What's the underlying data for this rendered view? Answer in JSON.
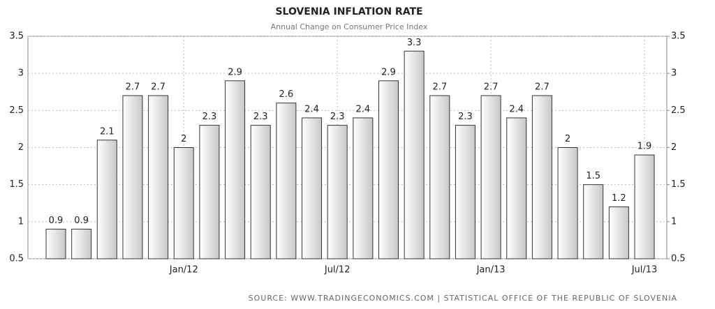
{
  "chart_data": {
    "type": "bar",
    "title": "SLOVENIA INFLATION RATE",
    "subtitle": "Annual Change on Consumer Price Index",
    "categories": [
      null,
      null,
      null,
      null,
      null,
      "Jan/12",
      null,
      null,
      null,
      null,
      null,
      "Jul/12",
      null,
      null,
      null,
      null,
      null,
      "Jan/13",
      null,
      null,
      null,
      null,
      null,
      "Jul/13"
    ],
    "values": [
      0.9,
      0.9,
      2.1,
      2.7,
      2.7,
      2,
      2.3,
      2.9,
      2.3,
      2.6,
      2.4,
      2.3,
      2.4,
      2.9,
      3.3,
      2.7,
      2.3,
      2.7,
      2.4,
      2.7,
      2,
      1.5,
      1.2,
      1.9
    ],
    "color": "#d8d8d8",
    "ylim": [
      0.5,
      3.5
    ],
    "yticks": [
      0.5,
      1,
      1.5,
      2,
      2.5,
      3,
      3.5
    ],
    "y2lim": [
      0.5,
      3.5
    ],
    "y2ticks": [
      0.5,
      1,
      1.5,
      2,
      2.5,
      3,
      3.5
    ],
    "grid": true,
    "source": "SOURCE: WWW.TRADINGECONOMICS.COM | STATISTICAL OFFICE OF THE REPUBLIC OF SLOVENIA"
  }
}
